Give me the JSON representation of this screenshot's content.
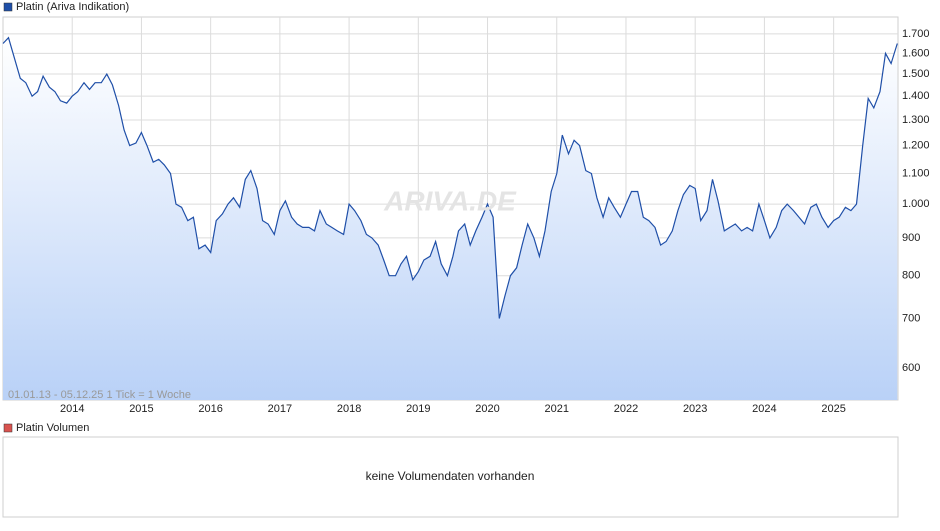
{
  "chart_data": {
    "type": "line",
    "legend_label": "Platin (Ariva Indikation)",
    "info": "01.01.13 - 05.12.25   1 Tick = 1 Woche",
    "watermark": "ARIVA.DE",
    "volume_legend": "Platin Volumen",
    "volume_note": "keine Volumendaten vorhanden",
    "log_scale": true,
    "grid": true,
    "xlim": [
      2013.0,
      2025.93
    ],
    "xticks": [
      2014,
      2015,
      2016,
      2017,
      2018,
      2019,
      2020,
      2021,
      2022,
      2023,
      2024,
      2025
    ],
    "ylim": [
      543,
      1792
    ],
    "yticks": [
      600,
      700,
      800,
      900,
      {
        "value": 1000,
        "label": "1.000"
      },
      {
        "value": 1100,
        "label": "1.100"
      },
      {
        "value": 1200,
        "label": "1.200"
      },
      {
        "value": 1300,
        "label": "1.300"
      },
      {
        "value": 1400,
        "label": "1.400"
      },
      {
        "value": 1500,
        "label": "1.500"
      },
      {
        "value": 1600,
        "label": "1.600"
      },
      {
        "value": 1700,
        "label": "1.700"
      }
    ],
    "x": [
      2013,
      2013.08,
      2013.17,
      2013.25,
      2013.33,
      2013.42,
      2013.5,
      2013.58,
      2013.67,
      2013.75,
      2013.83,
      2013.92,
      2014,
      2014.08,
      2014.17,
      2014.25,
      2014.33,
      2014.42,
      2014.5,
      2014.58,
      2014.67,
      2014.75,
      2014.83,
      2014.92,
      2015,
      2015.08,
      2015.17,
      2015.25,
      2015.33,
      2015.42,
      2015.5,
      2015.58,
      2015.67,
      2015.75,
      2015.83,
      2015.92,
      2016,
      2016.08,
      2016.17,
      2016.25,
      2016.33,
      2016.42,
      2016.5,
      2016.58,
      2016.67,
      2016.75,
      2016.83,
      2016.92,
      2017,
      2017.08,
      2017.17,
      2017.25,
      2017.33,
      2017.42,
      2017.5,
      2017.58,
      2017.67,
      2017.75,
      2017.83,
      2017.92,
      2018,
      2018.08,
      2018.17,
      2018.25,
      2018.33,
      2018.42,
      2018.5,
      2018.58,
      2018.67,
      2018.75,
      2018.83,
      2018.92,
      2019,
      2019.08,
      2019.17,
      2019.25,
      2019.33,
      2019.42,
      2019.5,
      2019.58,
      2019.67,
      2019.75,
      2019.83,
      2019.92,
      2020,
      2020.08,
      2020.17,
      2020.25,
      2020.33,
      2020.42,
      2020.5,
      2020.58,
      2020.67,
      2020.75,
      2020.83,
      2020.92,
      2021,
      2021.08,
      2021.17,
      2021.25,
      2021.33,
      2021.42,
      2021.5,
      2021.58,
      2021.67,
      2021.75,
      2021.83,
      2021.92,
      2022,
      2022.08,
      2022.17,
      2022.25,
      2022.33,
      2022.42,
      2022.5,
      2022.58,
      2022.67,
      2022.75,
      2022.83,
      2022.92,
      2023,
      2023.08,
      2023.17,
      2023.25,
      2023.33,
      2023.42,
      2023.5,
      2023.58,
      2023.67,
      2023.75,
      2023.83,
      2023.92,
      2024,
      2024.08,
      2024.17,
      2024.25,
      2024.33,
      2024.42,
      2024.5,
      2024.58,
      2024.67,
      2024.75,
      2024.83,
      2024.92,
      2025,
      2025.08,
      2025.17,
      2025.25,
      2025.33,
      2025.42,
      2025.5,
      2025.58,
      2025.67,
      2025.75,
      2025.83,
      2025.92
    ],
    "series": [
      {
        "name": "Platin (Ariva Indikation)",
        "color": "#1f4fa8",
        "values": [
          1650,
          1680,
          1570,
          1480,
          1460,
          1400,
          1420,
          1490,
          1440,
          1420,
          1380,
          1370,
          1400,
          1420,
          1460,
          1430,
          1460,
          1460,
          1500,
          1450,
          1360,
          1260,
          1200,
          1210,
          1250,
          1200,
          1140,
          1150,
          1130,
          1100,
          1000,
          990,
          950,
          960,
          870,
          880,
          860,
          950,
          970,
          1000,
          1020,
          990,
          1080,
          1110,
          1050,
          950,
          940,
          910,
          980,
          1010,
          960,
          940,
          930,
          930,
          920,
          980,
          940,
          930,
          920,
          910,
          1000,
          980,
          950,
          910,
          900,
          880,
          840,
          800,
          800,
          830,
          850,
          790,
          810,
          840,
          850,
          890,
          830,
          800,
          850,
          920,
          940,
          880,
          920,
          960,
          1000,
          960,
          700,
          750,
          800,
          820,
          880,
          940,
          900,
          850,
          920,
          1040,
          1100,
          1240,
          1170,
          1220,
          1200,
          1110,
          1100,
          1020,
          960,
          1020,
          990,
          960,
          1000,
          1040,
          1040,
          960,
          950,
          930,
          880,
          890,
          920,
          980,
          1030,
          1060,
          1050,
          950,
          980,
          1080,
          1010,
          920,
          930,
          940,
          920,
          930,
          920,
          1000,
          950,
          900,
          930,
          980,
          1000,
          980,
          960,
          940,
          990,
          1000,
          960,
          930,
          950,
          960,
          990,
          980,
          1000,
          1200,
          1390,
          1350,
          1420,
          1600,
          1550,
          1650
        ]
      }
    ]
  }
}
